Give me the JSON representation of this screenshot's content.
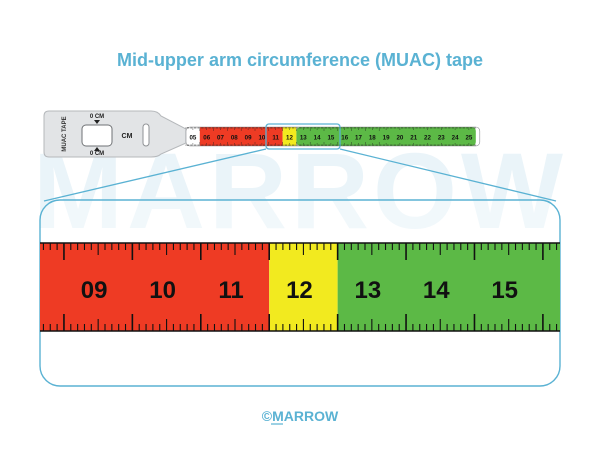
{
  "title": "Mid-upper arm circumference (MUAC) tape",
  "watermark": "MARROW",
  "copyright": "©MARROW",
  "tape_head": {
    "vertical_label": "MUAC TAPE",
    "top_marker": "0 CM",
    "bottom_marker": "0 CM",
    "unit_label": "CM"
  },
  "tape_numbers": [
    "05",
    "06",
    "07",
    "08",
    "09",
    "10",
    "11",
    "12",
    "13",
    "14",
    "15",
    "16",
    "17",
    "18",
    "19",
    "20",
    "21",
    "22",
    "23",
    "24",
    "25"
  ],
  "zoom_numbers": [
    "09",
    "10",
    "11",
    "12",
    "13",
    "14",
    "15"
  ],
  "zones": {
    "red": {
      "from": 5,
      "to": 11.5,
      "color": "#ee3b24"
    },
    "yellow": {
      "from": 11.5,
      "to": 12.5,
      "color": "#f2ea1f"
    },
    "green": {
      "from": 12.5,
      "to": 25.5,
      "color": "#5cb946"
    }
  },
  "colors": {
    "title": "#5ab2d3",
    "callout": "#5ab2d3",
    "watermark": "#eef6fa",
    "head": "#e3e5e7"
  }
}
